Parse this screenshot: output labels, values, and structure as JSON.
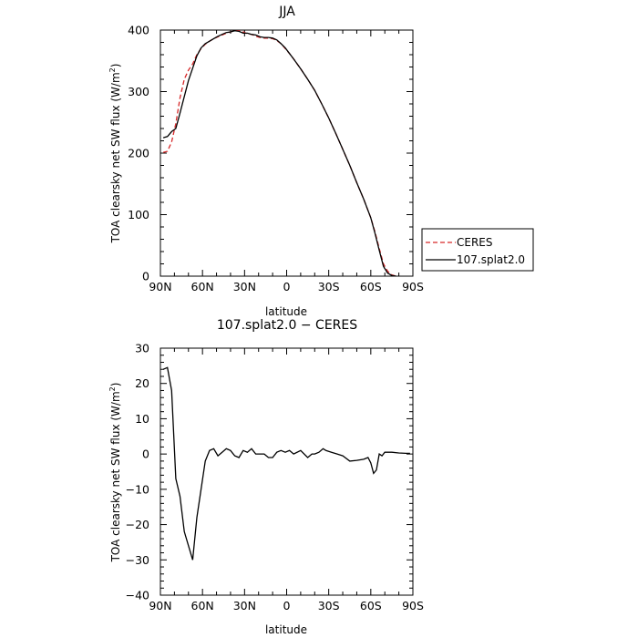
{
  "chart_data": [
    {
      "type": "line",
      "title": "JJA",
      "xlabel": "latitude",
      "ylabel_prefix": "TOA clearsky net SW flux (W/m",
      "ylabel_sup": "2",
      "ylabel_suffix": ")",
      "xlim": [
        90,
        -90
      ],
      "ylim": [
        0,
        400
      ],
      "x_ticks": [
        90,
        60,
        30,
        0,
        -30,
        -60,
        -90
      ],
      "x_tick_labels": [
        "90N",
        "60N",
        "30N",
        "0",
        "30S",
        "60S",
        "90S"
      ],
      "y_ticks": [
        0,
        100,
        200,
        300,
        400
      ],
      "y_tick_labels": [
        "0",
        "100",
        "200",
        "300",
        "400"
      ],
      "legend": {
        "placement": "right",
        "entries": [
          "CERES",
          "107.splat2.0"
        ]
      },
      "grid": false,
      "series": [
        {
          "name": "CERES",
          "color": "#d62728",
          "dash": "dashed",
          "x": [
            88,
            85,
            82,
            79,
            76,
            73,
            70,
            67,
            64,
            61,
            58,
            55,
            52,
            49,
            46,
            43,
            40,
            37,
            34,
            31,
            28,
            25,
            22,
            19,
            16,
            13,
            10,
            7,
            4,
            1,
            -2,
            -5,
            -10,
            -15,
            -20,
            -25,
            -30,
            -35,
            -40,
            -45,
            -50,
            -55,
            -60,
            -63,
            -66,
            -69,
            -72,
            -75,
            -78
          ],
          "y": [
            201,
            203,
            218,
            248,
            290,
            320,
            335,
            345,
            360,
            370,
            377,
            382,
            386,
            389,
            392,
            395,
            397,
            399,
            399,
            397,
            394,
            393,
            390,
            388,
            387,
            387,
            386,
            383,
            378,
            370,
            362,
            353,
            337,
            320,
            302,
            280,
            257,
            232,
            206,
            180,
            152,
            125,
            95,
            72,
            45,
            20,
            8,
            2,
            0
          ]
        },
        {
          "name": "107.splat2.0",
          "color": "#000000",
          "dash": "solid",
          "x": [
            88,
            85,
            82,
            79,
            76,
            73,
            70,
            67,
            64,
            61,
            58,
            55,
            52,
            49,
            46,
            43,
            40,
            37,
            34,
            31,
            28,
            25,
            22,
            19,
            16,
            13,
            10,
            7,
            4,
            1,
            -2,
            -5,
            -10,
            -15,
            -20,
            -25,
            -30,
            -35,
            -40,
            -45,
            -50,
            -55,
            -60,
            -63,
            -66,
            -69,
            -72,
            -75,
            -78
          ],
          "y": [
            225,
            227,
            235,
            240,
            265,
            292,
            318,
            338,
            358,
            371,
            378,
            382,
            386,
            390,
            393,
            396,
            397,
            399,
            398,
            395,
            395,
            393,
            392,
            389,
            388,
            388,
            387,
            384,
            378,
            371,
            362,
            353,
            337,
            320,
            302,
            280,
            257,
            232,
            206,
            180,
            152,
            125,
            95,
            70,
            42,
            16,
            5,
            1,
            0
          ]
        }
      ]
    },
    {
      "type": "line",
      "title": "107.splat2.0 − CERES",
      "xlabel": "latitude",
      "ylabel_prefix": "TOA clearsky net SW flux (W/m",
      "ylabel_sup": "2",
      "ylabel_suffix": ")",
      "xlim": [
        90,
        -90
      ],
      "ylim": [
        -40,
        30
      ],
      "x_ticks": [
        90,
        60,
        30,
        0,
        -30,
        -60,
        -90
      ],
      "x_tick_labels": [
        "90N",
        "60N",
        "30N",
        "0",
        "30S",
        "60S",
        "90S"
      ],
      "y_ticks": [
        -40,
        -30,
        -20,
        -10,
        0,
        10,
        20,
        30
      ],
      "y_tick_labels": [
        "−40",
        "−30",
        "−20",
        "−10",
        "0",
        "10",
        "20",
        "30"
      ],
      "grid": false,
      "series": [
        {
          "color": "#000000",
          "dash": "solid",
          "x": [
            88,
            85,
            82,
            79,
            76,
            73,
            70,
            67,
            64,
            61,
            58,
            55,
            52,
            49,
            46,
            43,
            40,
            37,
            34,
            31,
            28,
            25,
            22,
            19,
            16,
            13,
            10,
            7,
            4,
            1,
            -2,
            -5,
            -10,
            -15,
            -18,
            -20,
            -23,
            -26,
            -28,
            -32,
            -36,
            -40,
            -45,
            -50,
            -55,
            -58,
            -60,
            -62,
            -64,
            -66,
            -68,
            -70,
            -75,
            -80,
            -85,
            -88
          ],
          "y": [
            24,
            24.5,
            18,
            -7,
            -12,
            -22,
            -26,
            -30,
            -18,
            -10,
            -2,
            1,
            1.5,
            -0.5,
            0.5,
            1.5,
            1,
            -0.5,
            -1,
            1,
            0.5,
            1.5,
            0,
            0,
            0,
            -1,
            -1,
            0.5,
            1,
            0.5,
            1,
            0,
            1,
            -1,
            0,
            0,
            0.5,
            1.5,
            1,
            0.5,
            0,
            -0.5,
            -2,
            -1.8,
            -1.5,
            -1,
            -2.5,
            -5.5,
            -4.5,
            0,
            -0.5,
            0.5,
            0.5,
            0.3,
            0.2,
            0.2
          ]
        }
      ]
    }
  ]
}
